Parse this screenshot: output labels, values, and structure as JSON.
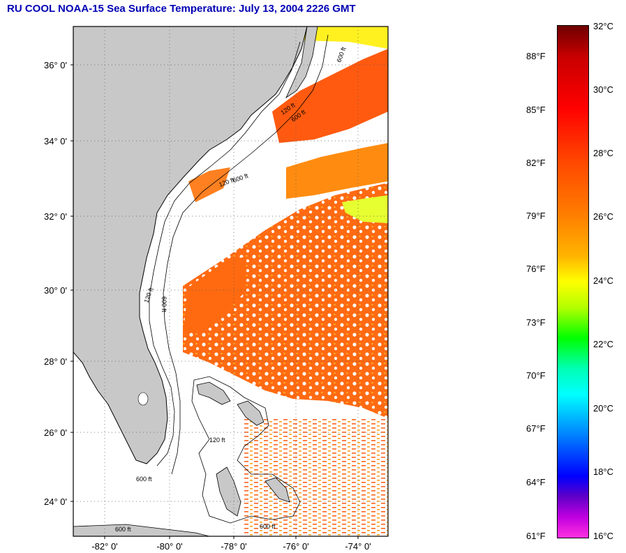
{
  "title": "RU COOL  NOAA-15  Sea Surface Temperature:  July 13, 2004 2226 GMT",
  "map": {
    "lat_labels": [
      "36° 0'",
      "34° 0'",
      "32° 0'",
      "30° 0'",
      "28° 0'",
      "26° 0'",
      "24° 0'"
    ],
    "lon_labels": [
      "-82° 0'",
      "-80° 0'",
      "-78° 0'",
      "-76° 0'",
      "-74° 0'"
    ],
    "contour_labels": [
      "600 ft",
      "120 ft",
      "600 ft",
      "120 ft",
      "600 ft",
      "600 ft",
      "120 ft",
      "600 ft",
      "120 ft",
      "600 ft",
      "600 ft"
    ]
  },
  "colorbar": {
    "fahrenheit": [
      "88°F",
      "85°F",
      "82°F",
      "79°F",
      "76°F",
      "73°F",
      "70°F",
      "67°F",
      "64°F",
      "61°F"
    ],
    "celsius": [
      "32°C",
      "30°C",
      "28°C",
      "26°C",
      "24°C",
      "22°C",
      "20°C",
      "18°C",
      "16°C"
    ]
  },
  "colors": {
    "title": "#0000b4",
    "land": "#c8c8c8",
    "warm_water": "#ff6a10",
    "cloud": "#ffffff"
  }
}
